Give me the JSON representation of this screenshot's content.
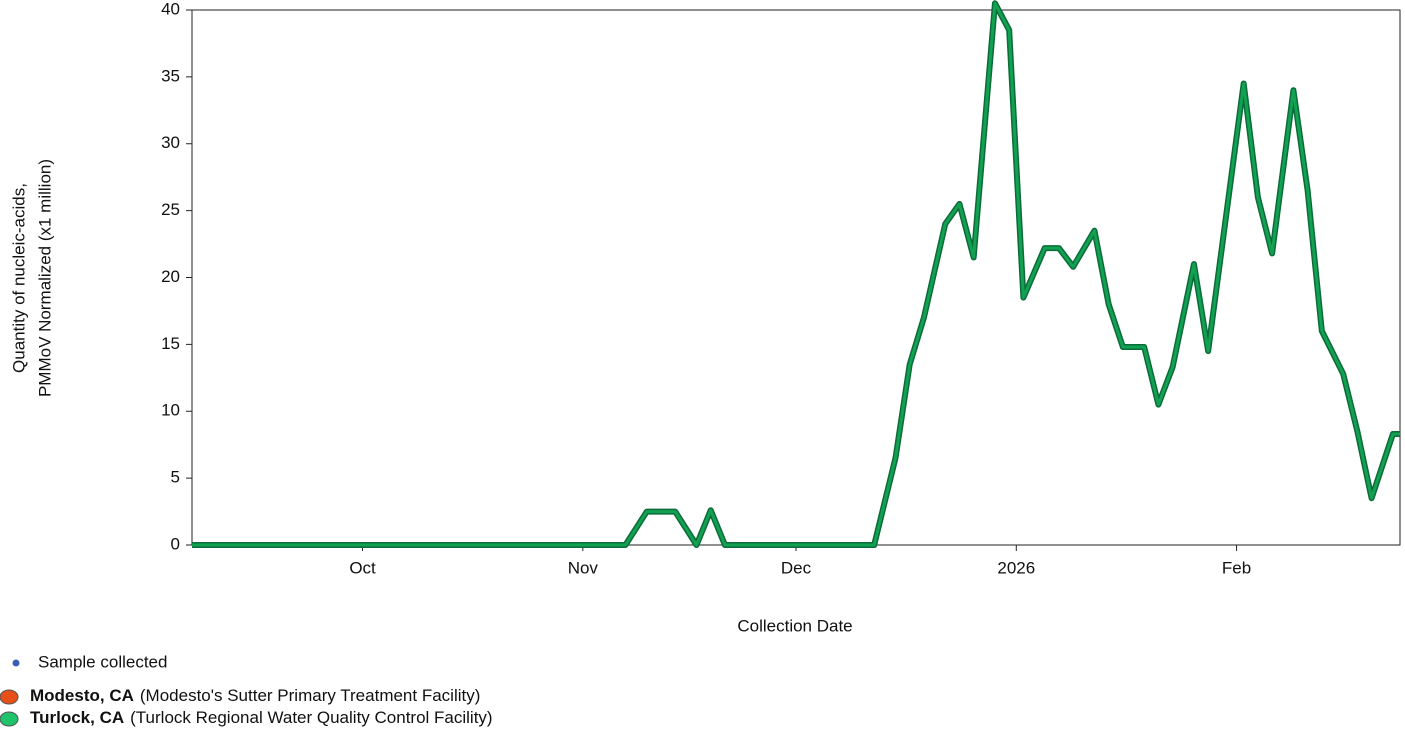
{
  "chart_data": {
    "type": "line",
    "xlabel": "Collection Date",
    "ylabel": [
      "Quantity of nucleic-acids,",
      "PMMoV Normalized (x1 million)"
    ],
    "xlim": [
      -24,
      146
    ],
    "xticks": [
      {
        "value": 0,
        "label": "Oct"
      },
      {
        "value": 31,
        "label": "Nov"
      },
      {
        "value": 61,
        "label": "Dec"
      },
      {
        "value": 92,
        "label": "2026"
      },
      {
        "value": 123,
        "label": "Feb"
      }
    ],
    "ylim": [
      0,
      40
    ],
    "yticks": [
      0,
      5,
      10,
      15,
      20,
      25,
      30,
      35,
      40
    ],
    "x": [
      -24,
      -17,
      -10,
      -3,
      4,
      11,
      18,
      25,
      32,
      37,
      40,
      44,
      47,
      49,
      51,
      58,
      65,
      72,
      75,
      77,
      79,
      82,
      84,
      86,
      89,
      91,
      93,
      96,
      98,
      100,
      103,
      105,
      107,
      110,
      112,
      114,
      117,
      119,
      124,
      126,
      128,
      131,
      133,
      135,
      138,
      140,
      142,
      145,
      146
    ],
    "series": [
      {
        "name": "Turlock, CA",
        "color": "#12a150",
        "values": [
          0,
          0,
          0,
          0,
          0,
          0,
          0,
          0,
          0,
          0,
          2.5,
          2.5,
          0,
          2.6,
          0,
          0,
          0,
          0,
          6.5,
          13.5,
          17,
          24,
          25.5,
          21.5,
          40.5,
          38.5,
          18.5,
          22.2,
          22.2,
          20.8,
          23.5,
          18,
          14.8,
          14.8,
          10.5,
          13.3,
          21,
          14.5,
          34.5,
          26,
          21.8,
          34,
          26.5,
          16,
          12.8,
          8.5,
          3.5,
          8.3,
          8.3
        ]
      }
    ],
    "legend_note": "Sample collected",
    "legend_items": [
      {
        "name": "Modesto, CA",
        "detail": "(Modesto's Sutter Primary Treatment Facility)",
        "color": "#e8501a"
      },
      {
        "name": "Turlock, CA",
        "detail": "(Turlock Regional Water Quality Control Facility)",
        "color": "#1fc46a"
      }
    ]
  }
}
